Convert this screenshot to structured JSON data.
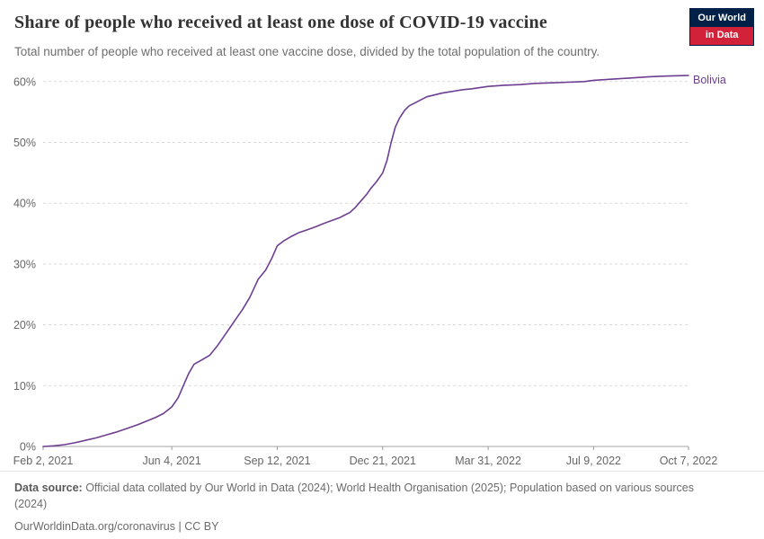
{
  "header": {
    "title": "Share of people who received at least one dose of COVID-19 vaccine",
    "subtitle": "Total number of people who received at least one vaccine dose, divided by the total population of the country.",
    "logo": {
      "line1": "Our World",
      "line2": "in Data"
    }
  },
  "chart_data": {
    "type": "line",
    "title": "Share of people who received at least one dose of COVID-19 vaccine",
    "xlabel": "",
    "ylabel": "",
    "grid": "horizontal-dashed",
    "legend_position": "end-of-line",
    "xlim": [
      0,
      612
    ],
    "ylim": [
      0,
      62
    ],
    "y_ticks": [
      0,
      10,
      20,
      30,
      40,
      50,
      60
    ],
    "y_tick_suffix": "%",
    "x_ticks": [
      {
        "label": "Feb 2, 2021",
        "day": 0
      },
      {
        "label": "Jun 4, 2021",
        "day": 122
      },
      {
        "label": "Sep 12, 2021",
        "day": 222
      },
      {
        "label": "Dec 21, 2021",
        "day": 322
      },
      {
        "label": "Mar 31, 2022",
        "day": 422
      },
      {
        "label": "Jul 9, 2022",
        "day": 522
      },
      {
        "label": "Oct 7, 2022",
        "day": 612
      }
    ],
    "series": [
      {
        "name": "Bolivia",
        "color": "#6d3e91",
        "points": [
          [
            0,
            0
          ],
          [
            10,
            0.1
          ],
          [
            20,
            0.3
          ],
          [
            30,
            0.6
          ],
          [
            40,
            1.0
          ],
          [
            50,
            1.4
          ],
          [
            60,
            1.9
          ],
          [
            70,
            2.4
          ],
          [
            80,
            3.0
          ],
          [
            90,
            3.6
          ],
          [
            100,
            4.3
          ],
          [
            107,
            4.8
          ],
          [
            114,
            5.4
          ],
          [
            122,
            6.5
          ],
          [
            128,
            8.0
          ],
          [
            133,
            10.0
          ],
          [
            138,
            12.0
          ],
          [
            143,
            13.5
          ],
          [
            150,
            14.2
          ],
          [
            158,
            15.0
          ],
          [
            165,
            16.5
          ],
          [
            173,
            18.5
          ],
          [
            181,
            20.5
          ],
          [
            189,
            22.5
          ],
          [
            196,
            24.5
          ],
          [
            204,
            27.5
          ],
          [
            211,
            29.0
          ],
          [
            217,
            31.0
          ],
          [
            222,
            33.0
          ],
          [
            228,
            33.8
          ],
          [
            235,
            34.5
          ],
          [
            243,
            35.2
          ],
          [
            250,
            35.6
          ],
          [
            258,
            36.1
          ],
          [
            265,
            36.6
          ],
          [
            273,
            37.1
          ],
          [
            281,
            37.6
          ],
          [
            291,
            38.5
          ],
          [
            296,
            39.3
          ],
          [
            302,
            40.5
          ],
          [
            307,
            41.5
          ],
          [
            311,
            42.5
          ],
          [
            316,
            43.5
          ],
          [
            322,
            45.0
          ],
          [
            326,
            47.0
          ],
          [
            330,
            50.0
          ],
          [
            334,
            52.5
          ],
          [
            338,
            54.0
          ],
          [
            343,
            55.3
          ],
          [
            347,
            56.0
          ],
          [
            355,
            56.7
          ],
          [
            364,
            57.5
          ],
          [
            371,
            57.8
          ],
          [
            378,
            58.1
          ],
          [
            385,
            58.3
          ],
          [
            392,
            58.5
          ],
          [
            400,
            58.7
          ],
          [
            406,
            58.8
          ],
          [
            414,
            59.0
          ],
          [
            422,
            59.2
          ],
          [
            437,
            59.4
          ],
          [
            452,
            59.5
          ],
          [
            467,
            59.7
          ],
          [
            483,
            59.8
          ],
          [
            498,
            59.9
          ],
          [
            513,
            60.0
          ],
          [
            522,
            60.2
          ],
          [
            540,
            60.4
          ],
          [
            559,
            60.6
          ],
          [
            575,
            60.8
          ],
          [
            590,
            60.9
          ],
          [
            612,
            61.0
          ]
        ]
      }
    ]
  },
  "footer": {
    "source_label": "Data source:",
    "source_text": " Official data collated by Our World in Data (2024); World Health Organisation (2025); Population based on various sources (2024)",
    "link": "OurWorldinData.org/coronavirus",
    "license": " | CC BY"
  }
}
